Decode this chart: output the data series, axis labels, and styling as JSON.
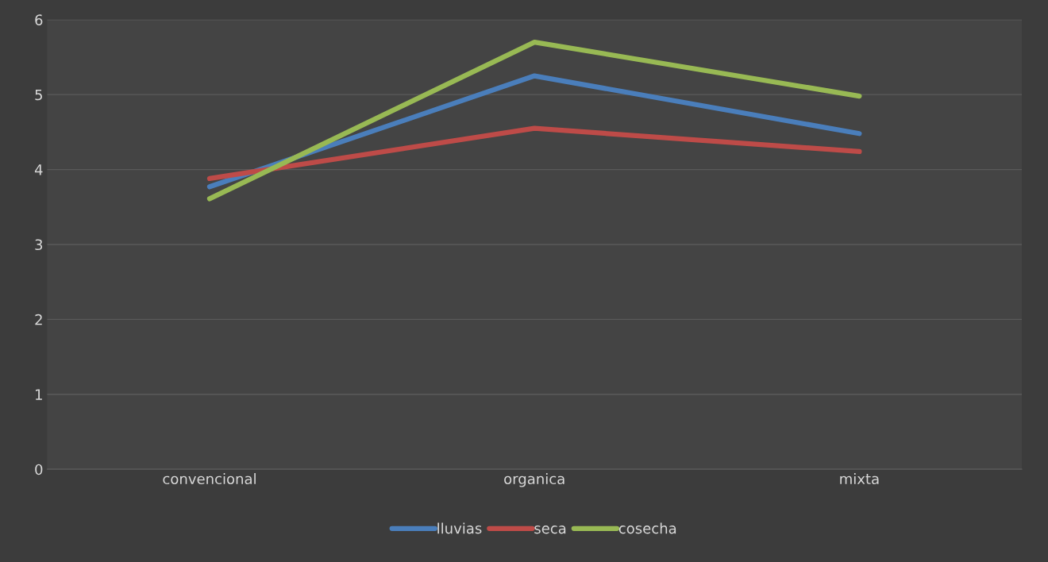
{
  "chart_data": {
    "type": "line",
    "categories": [
      "convencional",
      "organica",
      "mixta"
    ],
    "series": [
      {
        "name": "lluvias",
        "color": "#4a7ebb",
        "values": [
          3.77,
          5.25,
          4.48
        ]
      },
      {
        "name": "seca",
        "color": "#be4b48",
        "values": [
          3.88,
          4.55,
          4.24
        ]
      },
      {
        "name": "cosecha",
        "color": "#98b954",
        "values": [
          3.61,
          5.7,
          4.98
        ]
      }
    ],
    "ylim": [
      0,
      6
    ],
    "yticks": [
      0,
      1,
      2,
      3,
      4,
      5,
      6
    ],
    "grid": "y",
    "legend": "bottom",
    "marker": "none",
    "line_style": "solid"
  }
}
